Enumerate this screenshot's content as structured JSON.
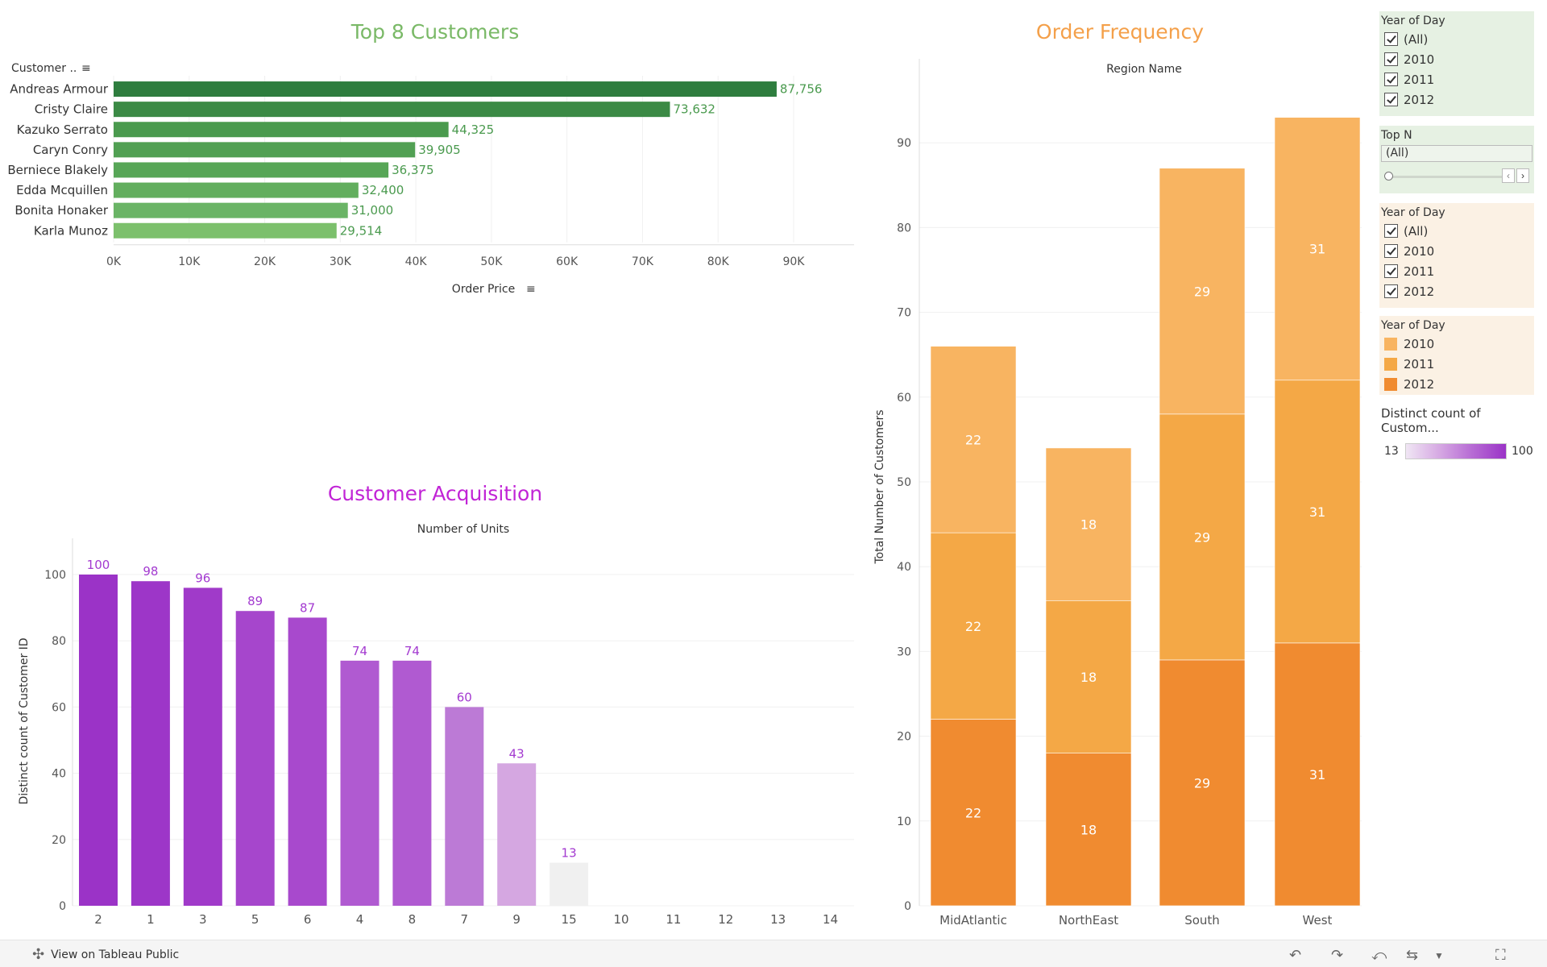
{
  "titles": {
    "top_customers": "Top 8 Customers",
    "order_frequency": "Order Frequency",
    "acquisition": "Customer Acquisition"
  },
  "colors": {
    "green_title": "#7ab967",
    "orange_title": "#f4a04a",
    "purple_title": "#c124d6"
  },
  "chart_data": [
    {
      "type": "bar",
      "orientation": "horizontal",
      "title": "Top 8 Customers",
      "row_header": "Customer ..",
      "xlabel": "Order Price",
      "categories": [
        "Andreas Armour",
        "Cristy Claire",
        "Kazuko Serrato",
        "Caryn Conry",
        "Berniece Blakely",
        "Edda Mcquillen",
        "Bonita Honaker",
        "Karla Munoz"
      ],
      "values": [
        87756,
        73632,
        44325,
        39905,
        36375,
        32400,
        31000,
        29514
      ],
      "value_labels": [
        "87,756",
        "73,632",
        "44,325",
        "39,905",
        "36,375",
        "32,400",
        "31,000",
        "29,514"
      ],
      "xticks": [
        "0K",
        "10K",
        "20K",
        "30K",
        "40K",
        "50K",
        "60K",
        "70K",
        "80K",
        "90K"
      ],
      "xlim": [
        0,
        98000
      ],
      "colors": [
        "#2e7d3e",
        "#3b8a45",
        "#4a9a4e",
        "#51a053",
        "#57a657",
        "#62ae5e",
        "#6ab466",
        "#7cc06c"
      ]
    },
    {
      "type": "bar",
      "stacked": true,
      "title": "Order Frequency",
      "header": "Region Name",
      "ylabel": "Total Number of Customers",
      "categories": [
        "MidAtlantic",
        "NorthEast",
        "South",
        "West"
      ],
      "series": [
        {
          "name": "2012",
          "values": [
            22,
            18,
            29,
            31
          ],
          "color": "#f08b30"
        },
        {
          "name": "2011",
          "values": [
            22,
            18,
            29,
            31
          ],
          "color": "#f4a846"
        },
        {
          "name": "2010",
          "values": [
            22,
            18,
            29,
            31
          ],
          "color": "#f8b461"
        }
      ],
      "totals_shown": [
        66,
        54,
        87,
        93
      ],
      "yticks": [
        "0",
        "10",
        "20",
        "30",
        "40",
        "50",
        "60",
        "70",
        "80",
        "90"
      ],
      "ylim": [
        0,
        100
      ]
    },
    {
      "type": "bar",
      "title": "Customer Acquisition",
      "header": "Number of Units",
      "ylabel": "Distinct count of Customer ID",
      "categories": [
        "2",
        "1",
        "3",
        "5",
        "6",
        "4",
        "8",
        "7",
        "9",
        "15",
        "10",
        "11",
        "12",
        "13",
        "14"
      ],
      "values": [
        100,
        98,
        96,
        89,
        87,
        74,
        74,
        60,
        43,
        13,
        null,
        null,
        null,
        null,
        null
      ],
      "colors": [
        "#9b33c7",
        "#9d36c8",
        "#a03ac9",
        "#a646cc",
        "#a849cd",
        "#b05ad1",
        "#b05ad1",
        "#bc7ad6",
        "#d5a7e1",
        "#f0f0f0"
      ],
      "yticks": [
        "0",
        "20",
        "40",
        "60",
        "80",
        "100"
      ],
      "ylim": [
        0,
        112
      ],
      "color_legend": {
        "title": "Distinct count of Custom...",
        "min": "13",
        "max": "100"
      }
    }
  ],
  "filters": {
    "year_of_day_1": {
      "title": "Year of Day",
      "items": [
        "(All)",
        "2010",
        "2011",
        "2012"
      ],
      "bg": "#e6f1e3"
    },
    "top_n": {
      "title": "Top N",
      "value": "(All)",
      "bg": "#e6f1e3"
    },
    "year_of_day_2": {
      "title": "Year of Day",
      "items": [
        "(All)",
        "2010",
        "2011",
        "2012"
      ],
      "bg": "#fbf1e4"
    },
    "year_legend": {
      "title": "Year of Day",
      "items": [
        {
          "label": "2010",
          "color": "#f8b461"
        },
        {
          "label": "2011",
          "color": "#f4a846"
        },
        {
          "label": "2012",
          "color": "#f08b30"
        }
      ],
      "bg": "#fbf1e4"
    }
  },
  "footer": {
    "view_link": "View on Tableau Public",
    "icons": [
      "undo-icon",
      "redo-icon",
      "revert-icon",
      "share-icon",
      "fullscreen-icon"
    ]
  }
}
